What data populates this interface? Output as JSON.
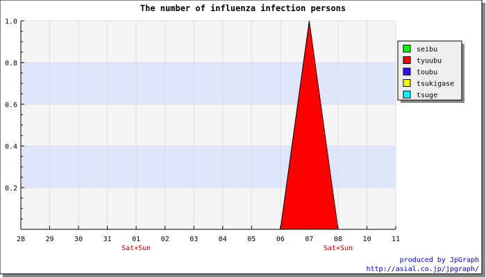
{
  "chart_data": {
    "type": "area",
    "title": "The number of influenza infection persons",
    "categories": [
      "28",
      "29",
      "30",
      "31",
      "01",
      "02",
      "03",
      "04",
      "05",
      "06",
      "07",
      "08",
      "10",
      "11"
    ],
    "weekend_labels": [
      {
        "category": "01",
        "label": "Sat+Sun"
      },
      {
        "category": "08",
        "label": "Sat+Sun"
      }
    ],
    "series": [
      {
        "name": "seibu",
        "color": "#00ff00",
        "values": [
          0,
          0,
          0,
          0,
          0,
          0,
          0,
          0,
          0,
          0,
          0,
          0,
          0,
          0
        ]
      },
      {
        "name": "tyuubu",
        "color": "#ff0000",
        "values": [
          0,
          0,
          0,
          0,
          0,
          0,
          0,
          0,
          0,
          0,
          1,
          0,
          0,
          0
        ]
      },
      {
        "name": "toubu",
        "color": "#3311ff",
        "values": [
          0,
          0,
          0,
          0,
          0,
          0,
          0,
          0,
          0,
          0,
          0,
          0,
          0,
          0
        ]
      },
      {
        "name": "tsukigase",
        "color": "#ffff00",
        "values": [
          0,
          0,
          0,
          0,
          0,
          0,
          0,
          0,
          0,
          0,
          0,
          0,
          0,
          0
        ]
      },
      {
        "name": "tsuge",
        "color": "#00ffff",
        "values": [
          0,
          0,
          0,
          0,
          0,
          0,
          0,
          0,
          0,
          0,
          0,
          0,
          0,
          0
        ]
      }
    ],
    "ylim": [
      0,
      1.0
    ],
    "yticks": [
      "0.2",
      "0.4",
      "0.6",
      "0.8",
      "1.0"
    ],
    "xlabel": "",
    "ylabel": "",
    "grid": true,
    "legend": "top-right"
  },
  "credit": {
    "line1": "produced by JpGraph",
    "line2": "http://asial.co.jp/jpgraph/"
  }
}
